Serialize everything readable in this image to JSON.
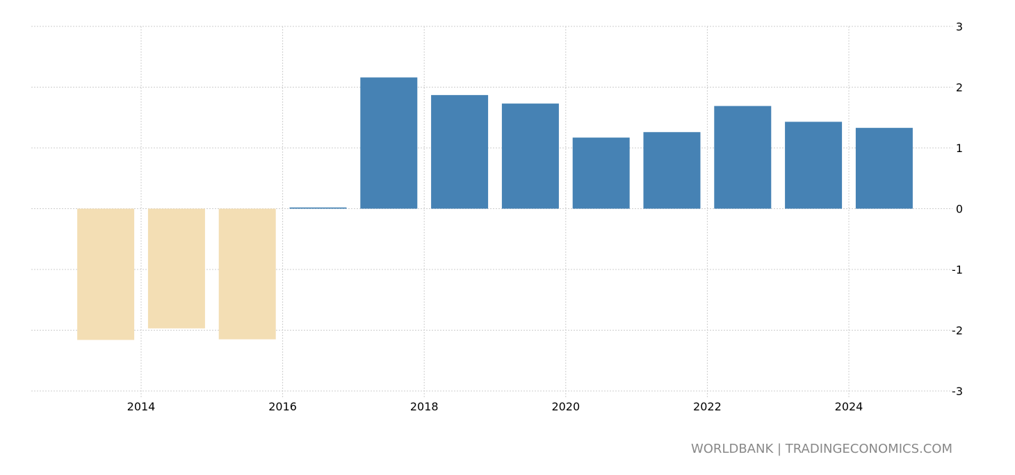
{
  "chart_data": {
    "type": "bar",
    "title": "",
    "xlabel": "",
    "ylabel": "",
    "categories": [
      "2013",
      "2014",
      "2015",
      "2016",
      "2017",
      "2018",
      "2019",
      "2020",
      "2021",
      "2022",
      "2023",
      "2024"
    ],
    "values": [
      -2.16,
      -1.97,
      -2.15,
      0.02,
      2.16,
      1.87,
      1.73,
      1.17,
      1.26,
      1.69,
      1.43,
      1.33
    ],
    "ylim": [
      -3,
      3
    ],
    "yticks": [
      "3",
      "2",
      "1",
      "0",
      "-1",
      "-2",
      "-3"
    ],
    "ytick_values": [
      3,
      2,
      1,
      0,
      -1,
      -2,
      -3
    ],
    "xticks": [
      "2014",
      "2016",
      "2018",
      "2020",
      "2022",
      "2024"
    ],
    "xtick_values": [
      2014,
      2016,
      2018,
      2020,
      2022,
      2024
    ],
    "grid": true,
    "colors": {
      "positive": "#4682b4",
      "negative": "#f3deb4",
      "grid": "#cccccc"
    }
  },
  "source": "WORLDBANK | TRADINGECONOMICS.COM"
}
